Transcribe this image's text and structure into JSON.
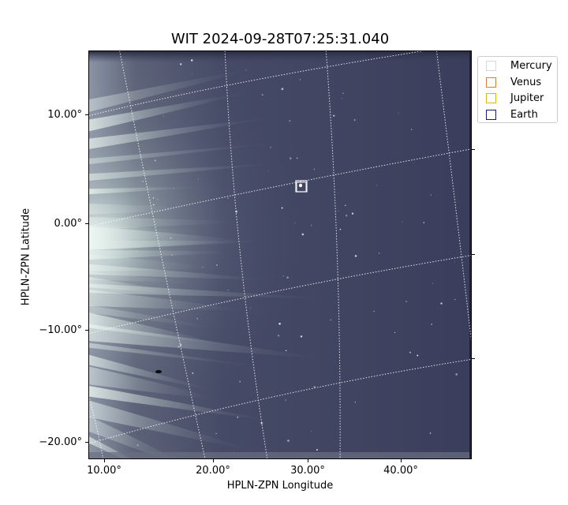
{
  "title": "WIT 2024-09-28T07:25:31.040",
  "xlabel": "HPLN-ZPN Longitude",
  "ylabel": "HPLN-ZPN Latitude",
  "x_ticks": [
    "10.00°",
    "20.00°",
    "30.00°",
    "40.00°"
  ],
  "y_ticks": [
    "10.00°",
    "0.00°",
    "−10.00°",
    "−20.00°"
  ],
  "legend": [
    {
      "label": "Mercury",
      "color": "#d8d8d8"
    },
    {
      "label": "Venus",
      "color": "#e07b39"
    },
    {
      "label": "Jupiter",
      "color": "#e5b31a"
    },
    {
      "label": "Earth",
      "color": "#1a1a6e"
    }
  ],
  "image_colormap": {
    "background": "#3b3f5c",
    "highlight": "#e4f4ee"
  }
}
